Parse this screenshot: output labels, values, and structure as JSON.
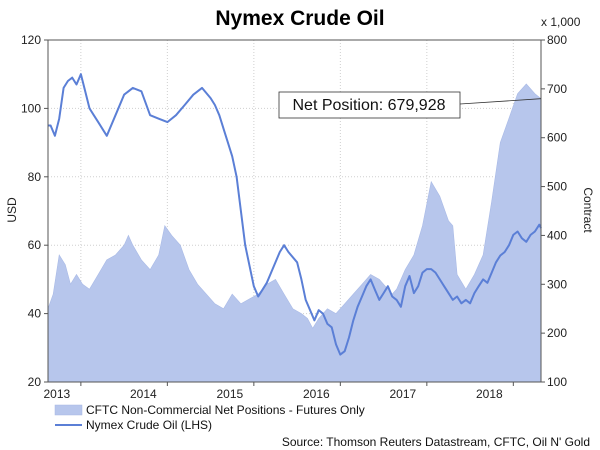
{
  "chart_data": {
    "type": "area",
    "title": "Nymex Crude Oil",
    "ylabel": "USD",
    "y2label": "Contract",
    "y2_unit": "x 1,000",
    "ylim": [
      20,
      120
    ],
    "y2lim": [
      100,
      800
    ],
    "y_ticks": [
      20,
      40,
      60,
      80,
      100,
      120
    ],
    "y2_ticks": [
      100,
      200,
      300,
      400,
      500,
      600,
      700,
      800
    ],
    "xlim": [
      2012.62,
      2018.32
    ],
    "x_ticks": [
      2013,
      2014,
      2015,
      2016,
      2017,
      2018
    ],
    "grid": true,
    "legend_placement": "bottom-left",
    "annotation": "Net Position: 679,928",
    "annotation_value": 679.928,
    "source": "Source: Thomson Reuters Datastream, CFTC, Oil N' Gold",
    "series": [
      {
        "name": "CFTC Non-Commercial Net Positions - Futures Only",
        "axis": "right",
        "style": "area",
        "color": "#b7c6ec",
        "x": [
          2012.62,
          2012.68,
          2012.75,
          2012.82,
          2012.88,
          2012.95,
          2013.02,
          2013.1,
          2013.2,
          2013.3,
          2013.4,
          2013.5,
          2013.55,
          2013.6,
          2013.7,
          2013.8,
          2013.9,
          2013.97,
          2014.05,
          2014.15,
          2014.25,
          2014.35,
          2014.45,
          2014.55,
          2014.65,
          2014.75,
          2014.85,
          2014.95,
          2015.05,
          2015.15,
          2015.25,
          2015.35,
          2015.45,
          2015.55,
          2015.62,
          2015.68,
          2015.75,
          2015.85,
          2015.95,
          2016.05,
          2016.15,
          2016.25,
          2016.35,
          2016.45,
          2016.55,
          2016.6,
          2016.65,
          2016.75,
          2016.85,
          2016.95,
          2017.05,
          2017.15,
          2017.25,
          2017.3,
          2017.35,
          2017.45,
          2017.55,
          2017.65,
          2017.75,
          2017.85,
          2017.95,
          2018.05,
          2018.15,
          2018.25,
          2018.32
        ],
        "values": [
          250,
          280,
          360,
          340,
          300,
          320,
          300,
          290,
          320,
          350,
          360,
          380,
          400,
          380,
          350,
          330,
          360,
          420,
          400,
          380,
          330,
          300,
          280,
          260,
          250,
          280,
          260,
          270,
          280,
          300,
          310,
          280,
          250,
          240,
          230,
          210,
          230,
          250,
          240,
          260,
          280,
          300,
          320,
          310,
          290,
          280,
          290,
          330,
          360,
          420,
          510,
          480,
          430,
          420,
          320,
          290,
          320,
          360,
          470,
          590,
          640,
          690,
          710,
          690,
          680
        ]
      },
      {
        "name": "Nymex Crude Oil (LHS)",
        "axis": "left",
        "style": "line",
        "color": "#5b7fd6",
        "x": [
          2012.62,
          2012.65,
          2012.7,
          2012.75,
          2012.8,
          2012.85,
          2012.9,
          2012.95,
          2013.0,
          2013.05,
          2013.1,
          2013.15,
          2013.2,
          2013.3,
          2013.4,
          2013.5,
          2013.6,
          2013.7,
          2013.8,
          2013.9,
          2014.0,
          2014.1,
          2014.2,
          2014.3,
          2014.4,
          2014.5,
          2014.55,
          2014.6,
          2014.65,
          2014.7,
          2014.75,
          2014.8,
          2014.85,
          2014.9,
          2014.95,
          2015.0,
          2015.05,
          2015.1,
          2015.15,
          2015.2,
          2015.3,
          2015.35,
          2015.4,
          2015.5,
          2015.55,
          2015.6,
          2015.65,
          2015.7,
          2015.75,
          2015.8,
          2015.85,
          2015.9,
          2015.95,
          2016.0,
          2016.05,
          2016.1,
          2016.15,
          2016.2,
          2016.25,
          2016.3,
          2016.35,
          2016.4,
          2016.45,
          2016.5,
          2016.55,
          2016.6,
          2016.65,
          2016.7,
          2016.75,
          2016.8,
          2016.85,
          2016.9,
          2016.95,
          2017.0,
          2017.05,
          2017.1,
          2017.15,
          2017.2,
          2017.25,
          2017.3,
          2017.35,
          2017.4,
          2017.45,
          2017.5,
          2017.55,
          2017.6,
          2017.65,
          2017.7,
          2017.75,
          2017.8,
          2017.85,
          2017.9,
          2017.95,
          2018.0,
          2018.05,
          2018.1,
          2018.15,
          2018.2,
          2018.25,
          2018.3,
          2018.32
        ],
        "values": [
          95,
          95,
          92,
          97,
          106,
          108,
          109,
          107,
          110,
          105,
          100,
          98,
          96,
          92,
          98,
          104,
          106,
          105,
          98,
          97,
          96,
          98,
          101,
          104,
          106,
          103,
          101,
          98,
          94,
          90,
          86,
          80,
          70,
          60,
          54,
          48,
          45,
          47,
          49,
          52,
          58,
          60,
          58,
          55,
          50,
          44,
          41,
          38,
          41,
          40,
          37,
          36,
          31,
          28,
          29,
          33,
          38,
          42,
          45,
          48,
          50,
          47,
          44,
          46,
          48,
          45,
          44,
          42,
          48,
          51,
          46,
          48,
          52,
          53,
          53,
          52,
          50,
          48,
          46,
          44,
          45,
          43,
          44,
          43,
          46,
          48,
          50,
          49,
          52,
          55,
          57,
          58,
          60,
          63,
          64,
          62,
          61,
          63,
          64,
          66,
          65
        ]
      }
    ]
  }
}
